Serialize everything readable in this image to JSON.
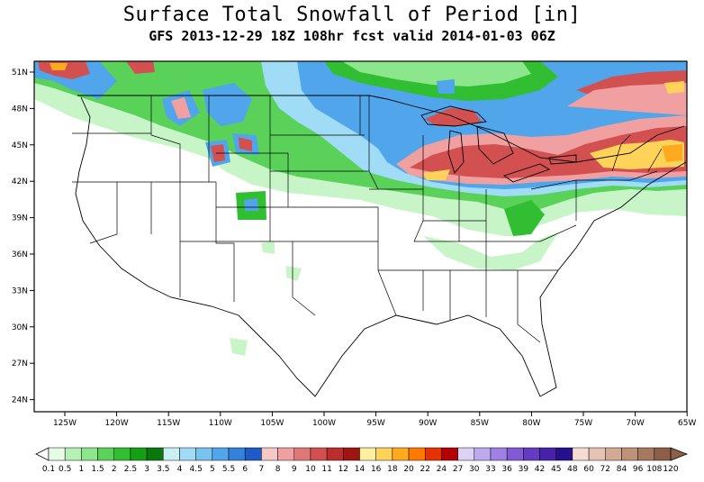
{
  "header": {
    "title": "Surface Total Snowfall of Period [in]",
    "subtitle": "GFS 2013-12-29 18Z 108hr fcst valid 2014-01-03 06Z"
  },
  "lat_labels": [
    "51N",
    "48N",
    "45N",
    "42N",
    "39N",
    "36N",
    "33N",
    "30N",
    "27N",
    "24N"
  ],
  "lon_labels": [
    "125W",
    "120W",
    "115W",
    "110W",
    "105W",
    "100W",
    "95W",
    "90W",
    "85W",
    "80W",
    "75W",
    "70W",
    "65W"
  ],
  "colorbar": {
    "labels": [
      "0.1",
      "0.5",
      "1",
      "1.5",
      "2",
      "2.5",
      "3",
      "3.5",
      "4",
      "4.5",
      "5",
      "5.5",
      "6",
      "7",
      "8",
      "9",
      "10",
      "11",
      "12",
      "14",
      "16",
      "18",
      "20",
      "22",
      "24",
      "27",
      "30",
      "33",
      "36",
      "39",
      "42",
      "45",
      "48",
      "60",
      "72",
      "84",
      "96",
      "108",
      "120"
    ],
    "colors": [
      "#e6fae6",
      "#b4f0b4",
      "#8ce68c",
      "#5ad25a",
      "#32be32",
      "#14a014",
      "#0a780a",
      "#c8f0f5",
      "#a0dcf5",
      "#78c3f0",
      "#50a5eb",
      "#3282dc",
      "#1e5ac8",
      "#f5c8c8",
      "#f0a0a0",
      "#e17878",
      "#d25050",
      "#be2d2d",
      "#a01414",
      "#fff0a0",
      "#ffd25a",
      "#ffaa1e",
      "#ff7800",
      "#e63200",
      "#b40000",
      "#dcd2f5",
      "#beaaf0",
      "#a082e6",
      "#825ad7",
      "#643cc3",
      "#4623aa",
      "#280f8c",
      "#f5dcd2",
      "#e6c3b4",
      "#d2aa96",
      "#be9178",
      "#a5785f",
      "#8c5f46"
    ]
  },
  "legend_colors": {
    "green": "#32be32",
    "light_green": "#8ce68c",
    "pale_green": "#c8f5c8",
    "blue": "#50a5eb",
    "light_blue": "#a0dcf5",
    "pink": "#f0a0a0",
    "red": "#d25050",
    "yellow": "#ffd25a",
    "orange": "#ffaa1e"
  }
}
